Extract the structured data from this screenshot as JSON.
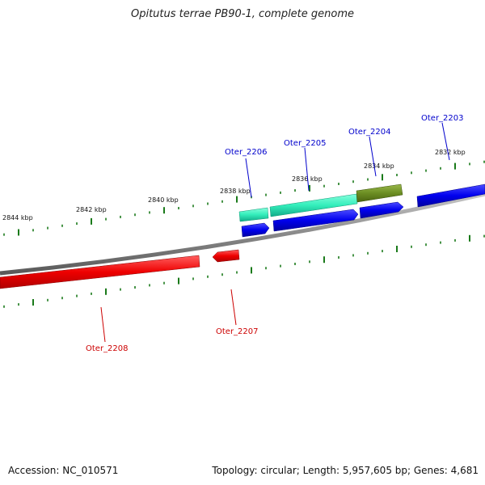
{
  "title": "Opitutus terrae PB90-1, complete genome",
  "footer": {
    "accession": "Accession: NC_010571",
    "summary": "Topology: circular; Length: 5,957,605 bp; Genes: 4,681"
  },
  "scale": {
    "labels": [
      "2844 kbp",
      "2842 kbp",
      "2840 kbp",
      "2838 kbp",
      "2836 kbp",
      "2834 kbp",
      "2832 kbp"
    ]
  },
  "genes": {
    "forward": [
      {
        "label": "Oter_2206",
        "color": "#0000cc"
      },
      {
        "label": "Oter_2205",
        "color": "#0000cc"
      },
      {
        "label": "Oter_2204",
        "color": "#0000cc"
      },
      {
        "label": "Oter_2203",
        "color": "#0000cc"
      }
    ],
    "reverse": [
      {
        "label": "Oter_2207",
        "color": "#cc0000"
      },
      {
        "label": "Oter_2208",
        "color": "#cc0000"
      }
    ]
  },
  "colors": {
    "backbone": "#8a8a8a",
    "forward_cds": "#0000ee",
    "reverse_cds": "#ee0000",
    "feature_teal": "#33eebb",
    "feature_olive": "#6b8e23",
    "ticks": "#1a7a1a"
  }
}
